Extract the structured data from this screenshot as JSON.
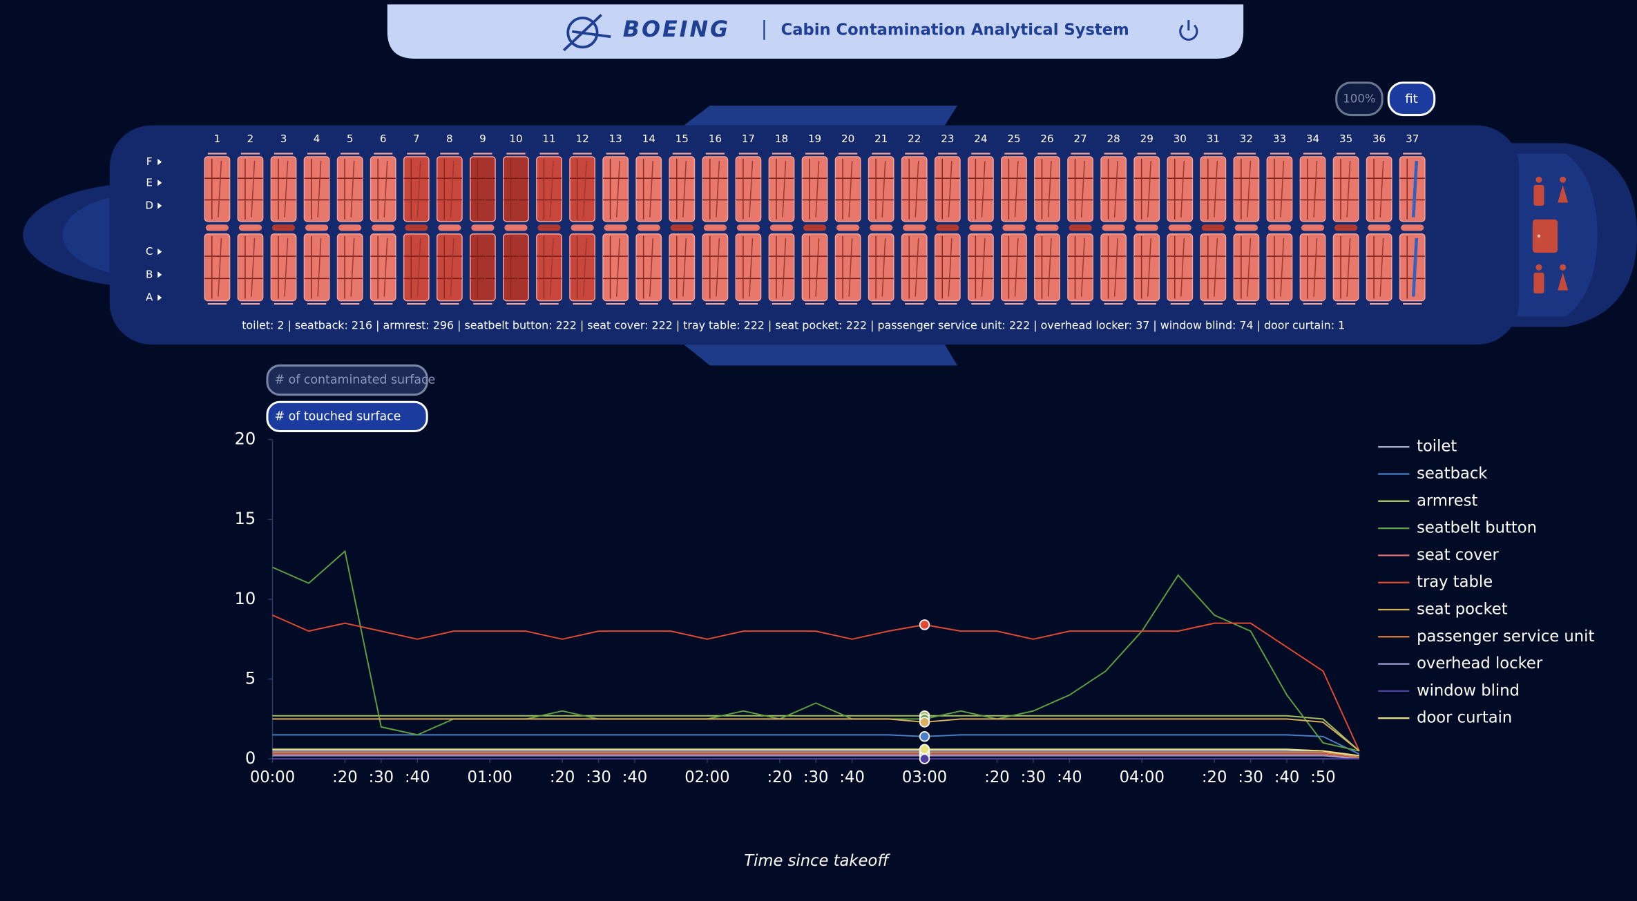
{
  "header": {
    "logo": "BOEING",
    "title": "Cabin Contamination Analytical System"
  },
  "zoom_buttons": [
    "100%",
    "fit"
  ],
  "seat_map": {
    "columns": [
      "1",
      "2",
      "3",
      "4",
      "5",
      "6",
      "7",
      "8",
      "9",
      "10",
      "11",
      "12",
      "13",
      "14",
      "15",
      "16",
      "17",
      "18",
      "19",
      "20",
      "21",
      "22",
      "23",
      "24",
      "25",
      "26",
      "27",
      "28",
      "29",
      "30",
      "31",
      "32",
      "33",
      "34",
      "35",
      "36",
      "37"
    ],
    "rows": [
      "F",
      "E",
      "D",
      "C",
      "B",
      "A"
    ],
    "summary": "toilet: 2 | seatback: 216 | armrest: 296 | seatbelt button: 222 | seat cover: 222 | tray table: 222 | seat pocket: 222 | passenger service unit: 222 | overhead locker: 37 | window blind: 74 | door curtain: 1"
  },
  "mode_buttons": [
    "# of contaminated surface",
    "# of touched surface"
  ],
  "chart_data": {
    "type": "line",
    "x_label": "Time since takeoff",
    "x": [
      0,
      10,
      20,
      30,
      40,
      50,
      60,
      70,
      80,
      90,
      100,
      110,
      120,
      130,
      140,
      150,
      160,
      170,
      180,
      190,
      200,
      210,
      220,
      230,
      240,
      250,
      260,
      270,
      280,
      290,
      300
    ],
    "xlim": [
      0,
      300
    ],
    "ylim": [
      0,
      20
    ],
    "yticks": [
      0,
      5,
      10,
      15,
      20
    ],
    "xticks": [
      {
        "value": 0,
        "label": "00:00"
      },
      {
        "value": 20,
        "label": ":20"
      },
      {
        "value": 30,
        "label": ":30"
      },
      {
        "value": 40,
        "label": ":40"
      },
      {
        "value": 60,
        "label": "01:00"
      },
      {
        "value": 80,
        "label": ":20"
      },
      {
        "value": 90,
        "label": ":30"
      },
      {
        "value": 100,
        "label": ":40"
      },
      {
        "value": 120,
        "label": "02:00"
      },
      {
        "value": 140,
        "label": ":20"
      },
      {
        "value": 150,
        "label": ":30"
      },
      {
        "value": 160,
        "label": ":40"
      },
      {
        "value": 180,
        "label": "03:00"
      },
      {
        "value": 200,
        "label": ":20"
      },
      {
        "value": 210,
        "label": ":30"
      },
      {
        "value": 220,
        "label": ":40"
      },
      {
        "value": 240,
        "label": "04:00"
      },
      {
        "value": 260,
        "label": ":20"
      },
      {
        "value": 270,
        "label": ":30"
      },
      {
        "value": 280,
        "label": ":40"
      },
      {
        "value": 290,
        "label": ":50"
      }
    ],
    "series": [
      {
        "name": "toilet",
        "color": "#b8c4e0",
        "values": [
          0.5,
          0.5,
          0.5,
          0.5,
          0.5,
          0.5,
          0.5,
          0.5,
          0.5,
          0.5,
          0.5,
          0.5,
          0.5,
          0.5,
          0.5,
          0.5,
          0.5,
          0.5,
          0.5,
          0.5,
          0.5,
          0.5,
          0.5,
          0.5,
          0.5,
          0.5,
          0.5,
          0.5,
          0.5,
          0.5,
          0.1
        ]
      },
      {
        "name": "seatback",
        "color": "#4a7fc8",
        "values": [
          1.5,
          1.5,
          1.5,
          1.5,
          1.5,
          1.5,
          1.5,
          1.5,
          1.5,
          1.5,
          1.5,
          1.5,
          1.5,
          1.5,
          1.5,
          1.5,
          1.5,
          1.5,
          1.4,
          1.5,
          1.5,
          1.5,
          1.5,
          1.5,
          1.5,
          1.5,
          1.5,
          1.5,
          1.5,
          1.4,
          0.3
        ]
      },
      {
        "name": "armrest",
        "color": "#a8c060",
        "values": [
          2.7,
          2.7,
          2.7,
          2.7,
          2.7,
          2.7,
          2.7,
          2.7,
          2.7,
          2.7,
          2.7,
          2.7,
          2.7,
          2.7,
          2.7,
          2.7,
          2.7,
          2.7,
          2.7,
          2.7,
          2.7,
          2.7,
          2.7,
          2.7,
          2.7,
          2.7,
          2.7,
          2.7,
          2.7,
          2.5,
          0.5
        ]
      },
      {
        "name": "seatbelt button",
        "color": "#5ea040",
        "values": [
          12,
          11,
          13,
          2,
          1.5,
          2.5,
          2.5,
          2.5,
          3,
          2.5,
          2.5,
          2.5,
          2.5,
          3,
          2.5,
          3.5,
          2.5,
          2.5,
          2.5,
          3,
          2.5,
          3,
          4,
          5.5,
          8,
          11.5,
          9,
          8,
          4,
          1,
          0.5
        ]
      },
      {
        "name": "seat cover",
        "color": "#e07070",
        "values": [
          0.3,
          0.3,
          0.3,
          0.3,
          0.3,
          0.3,
          0.3,
          0.3,
          0.3,
          0.3,
          0.3,
          0.3,
          0.3,
          0.3,
          0.3,
          0.3,
          0.3,
          0.3,
          0.3,
          0.3,
          0.3,
          0.3,
          0.3,
          0.3,
          0.3,
          0.3,
          0.3,
          0.3,
          0.3,
          0.3,
          0
        ]
      },
      {
        "name": "tray table",
        "color": "#e04a30",
        "values": [
          9,
          8,
          8.5,
          8,
          7.5,
          8,
          8,
          8,
          7.5,
          8,
          8,
          8,
          7.5,
          8,
          8,
          8,
          7.5,
          8,
          8.4,
          8,
          8,
          7.5,
          8,
          8,
          8,
          8,
          8.5,
          8.5,
          7,
          5.5,
          0.5
        ]
      },
      {
        "name": "seat pocket",
        "color": "#d8b060",
        "values": [
          2.5,
          2.5,
          2.5,
          2.5,
          2.5,
          2.5,
          2.5,
          2.5,
          2.5,
          2.5,
          2.5,
          2.5,
          2.5,
          2.5,
          2.5,
          2.5,
          2.5,
          2.5,
          2.3,
          2.5,
          2.5,
          2.5,
          2.5,
          2.5,
          2.5,
          2.5,
          2.5,
          2.5,
          2.5,
          2.3,
          0.5
        ]
      },
      {
        "name": "passenger service unit",
        "color": "#e08040",
        "values": [
          0.4,
          0.4,
          0.4,
          0.4,
          0.4,
          0.4,
          0.4,
          0.4,
          0.4,
          0.4,
          0.4,
          0.4,
          0.4,
          0.4,
          0.4,
          0.4,
          0.4,
          0.4,
          0.4,
          0.4,
          0.4,
          0.4,
          0.4,
          0.4,
          0.4,
          0.4,
          0.4,
          0.4,
          0.4,
          0.4,
          0.1
        ]
      },
      {
        "name": "overhead locker",
        "color": "#a0a0d0",
        "values": [
          0.2,
          0.2,
          0.2,
          0.2,
          0.2,
          0.2,
          0.2,
          0.2,
          0.2,
          0.2,
          0.2,
          0.2,
          0.2,
          0.2,
          0.2,
          0.2,
          0.2,
          0.2,
          0.2,
          0.2,
          0.2,
          0.2,
          0.2,
          0.2,
          0.2,
          0.2,
          0.2,
          0.2,
          0.2,
          0.2,
          0
        ]
      },
      {
        "name": "window blind",
        "color": "#5040a0",
        "values": [
          0,
          0,
          0,
          0,
          0,
          0,
          0,
          0,
          0,
          0,
          0,
          0,
          0,
          0,
          0,
          0,
          0,
          0,
          0,
          0,
          0,
          0,
          0,
          0,
          0,
          0,
          0,
          0,
          0,
          0,
          0
        ]
      },
      {
        "name": "door curtain",
        "color": "#e8e080",
        "values": [
          0.6,
          0.6,
          0.6,
          0.6,
          0.6,
          0.6,
          0.6,
          0.6,
          0.6,
          0.6,
          0.6,
          0.6,
          0.6,
          0.6,
          0.6,
          0.6,
          0.6,
          0.6,
          0.6,
          0.6,
          0.6,
          0.6,
          0.6,
          0.6,
          0.6,
          0.6,
          0.6,
          0.6,
          0.6,
          0.5,
          0.2
        ]
      }
    ]
  }
}
